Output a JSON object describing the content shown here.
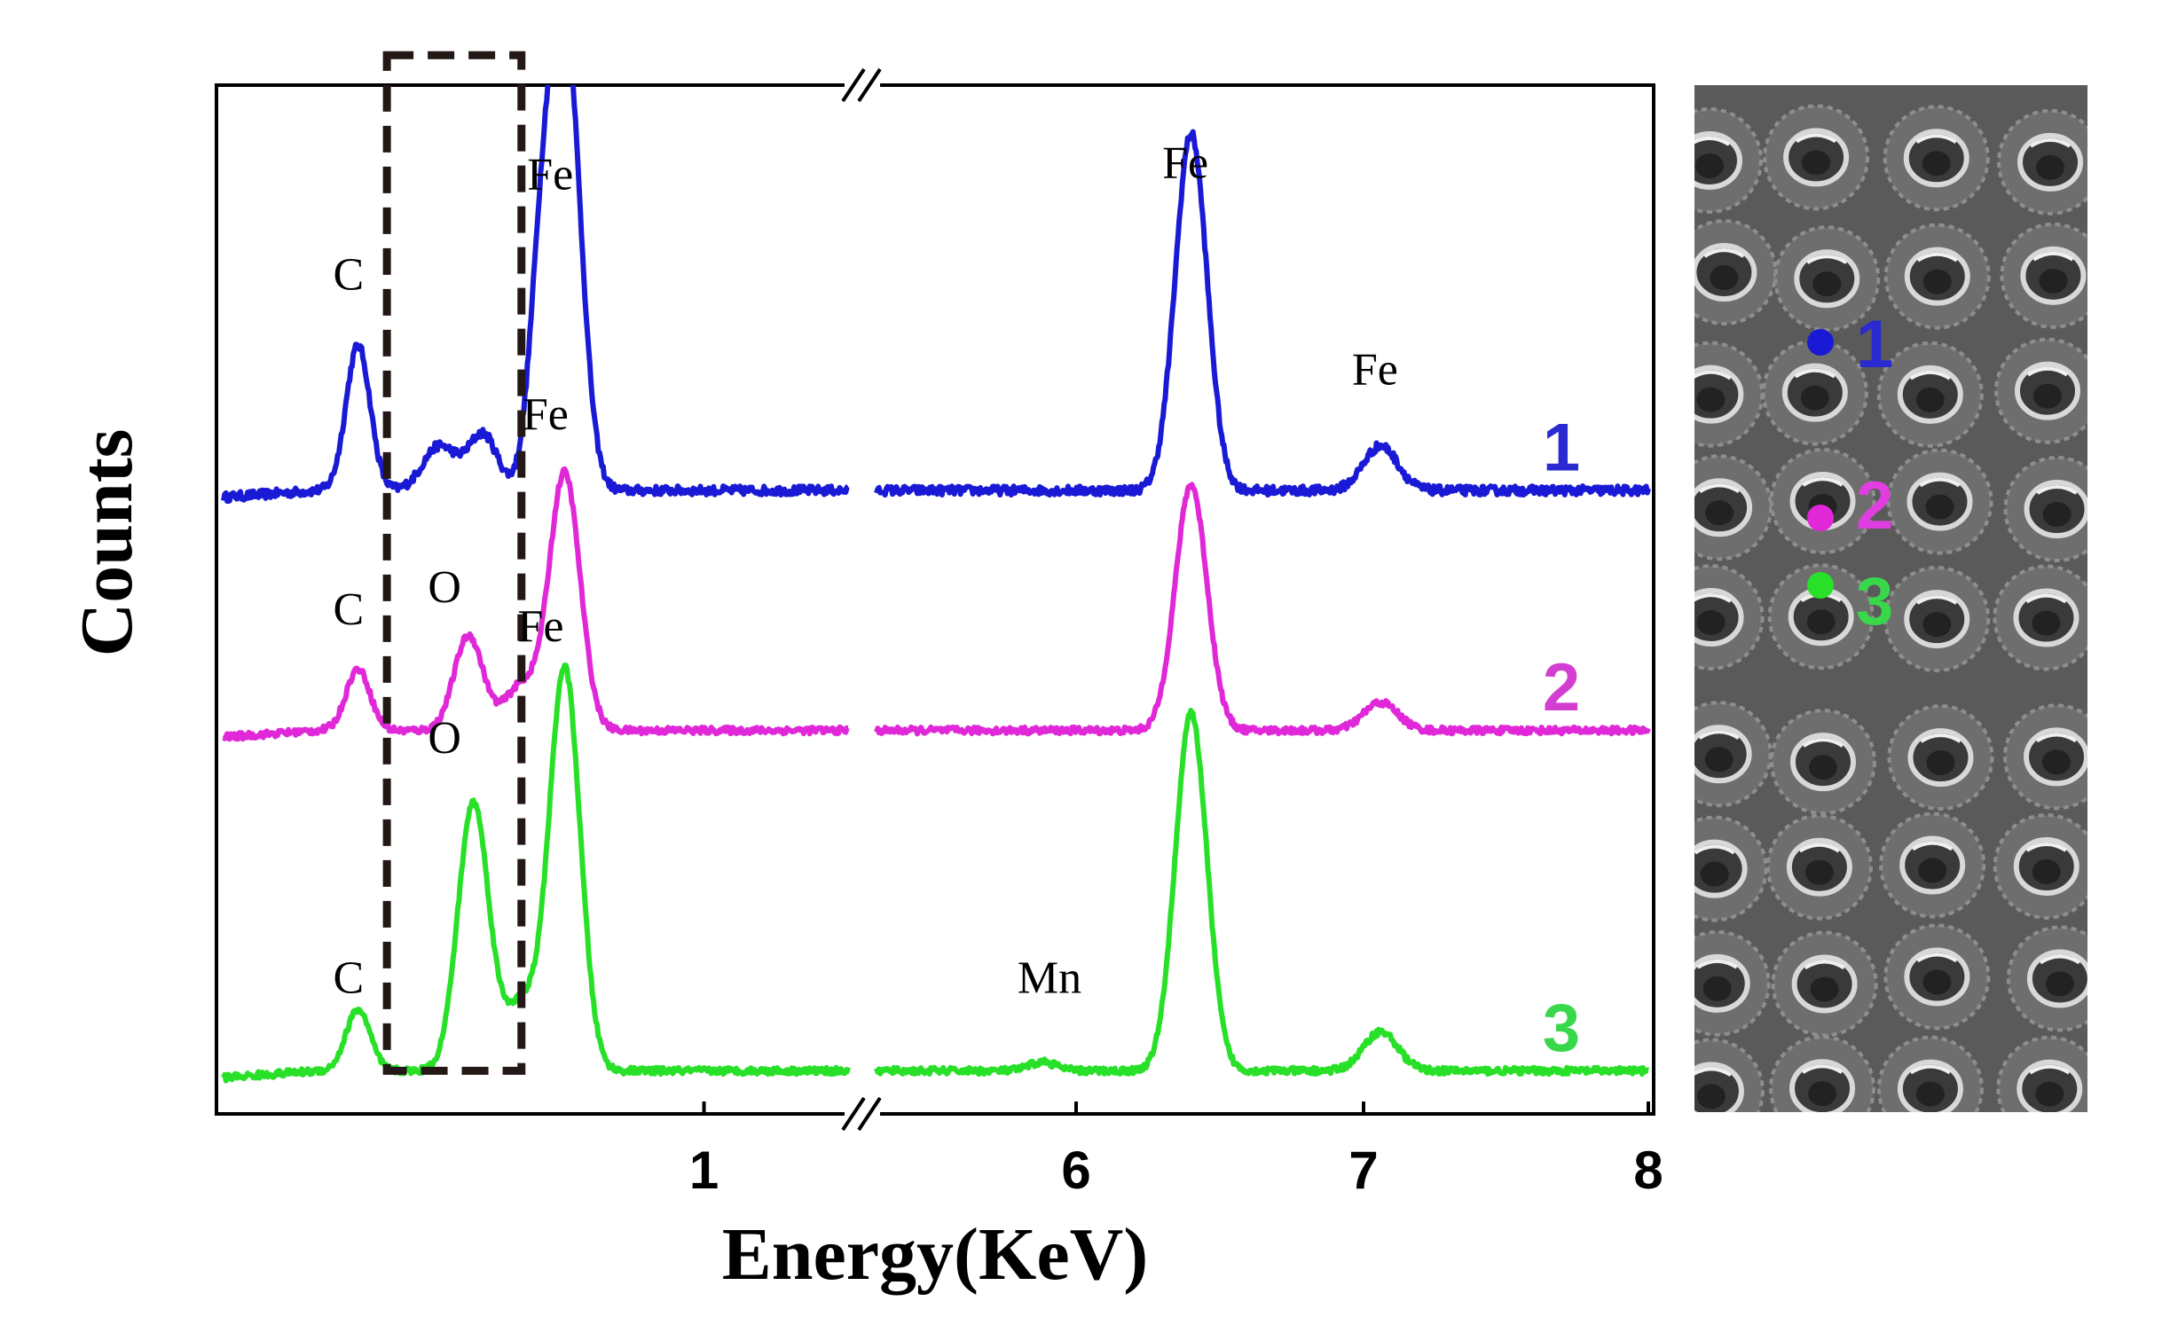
{
  "chart_data": {
    "type": "line",
    "title": "",
    "xlabel": "Energy(KeV)",
    "ylabel": "Counts",
    "x_axis_break": true,
    "xlim_segments": [
      [
        0,
        1.3
      ],
      [
        5.4,
        8
      ]
    ],
    "xticks": [
      {
        "value": 1,
        "label": "1"
      },
      {
        "value": 6,
        "label": "6"
      },
      {
        "value": 7,
        "label": "7"
      },
      {
        "value": 8,
        "label": "8"
      }
    ],
    "ylim": [
      -10,
      880
    ],
    "grid": false,
    "series": [
      {
        "name": "1",
        "label": "1",
        "color": "#1a1ad6",
        "baseline": 520,
        "noise": 4,
        "peaks": [
          {
            "center": 0.28,
            "height": 130,
            "width": 0.025
          },
          {
            "center": 0.45,
            "height": 40,
            "width": 0.035
          },
          {
            "center": 0.54,
            "height": 50,
            "width": 0.03
          },
          {
            "center": 0.66,
            "height": 160,
            "width": 0.025
          },
          {
            "center": 0.71,
            "height": 420,
            "width": 0.032
          },
          {
            "center": 6.4,
            "height": 320,
            "width": 0.055
          },
          {
            "center": 7.06,
            "height": 40,
            "width": 0.06
          }
        ]
      },
      {
        "name": "2",
        "label": "2",
        "color": "#e028d8",
        "baseline": 305,
        "noise": 3,
        "peaks": [
          {
            "center": 0.28,
            "height": 55,
            "width": 0.025
          },
          {
            "center": 0.51,
            "height": 85,
            "width": 0.03
          },
          {
            "center": 0.62,
            "height": 40,
            "width": 0.035
          },
          {
            "center": 0.71,
            "height": 230,
            "width": 0.032
          },
          {
            "center": 6.4,
            "height": 220,
            "width": 0.055
          },
          {
            "center": 7.06,
            "height": 25,
            "width": 0.06
          }
        ]
      },
      {
        "name": "3",
        "label": "3",
        "color": "#28e028",
        "baseline": 0,
        "noise": 3,
        "peaks": [
          {
            "center": 0.28,
            "height": 55,
            "width": 0.025
          },
          {
            "center": 0.52,
            "height": 240,
            "width": 0.032
          },
          {
            "center": 0.62,
            "height": 60,
            "width": 0.035
          },
          {
            "center": 0.71,
            "height": 360,
            "width": 0.032
          },
          {
            "center": 5.9,
            "height": 8,
            "width": 0.04
          },
          {
            "center": 6.4,
            "height": 320,
            "width": 0.055
          },
          {
            "center": 7.06,
            "height": 35,
            "width": 0.06
          }
        ]
      }
    ],
    "annotations": [
      {
        "text": "Fe",
        "x": 0.68,
        "y": 790
      },
      {
        "text": "C",
        "x": 0.26,
        "y": 700
      },
      {
        "text": "Fe",
        "x": 6.38,
        "y": 800
      },
      {
        "text": "Fe",
        "x": 7.04,
        "y": 615
      },
      {
        "text": "Fe",
        "x": 0.67,
        "y": 575
      },
      {
        "text": "O",
        "x": 0.46,
        "y": 420
      },
      {
        "text": "C",
        "x": 0.26,
        "y": 400
      },
      {
        "text": "Fe",
        "x": 0.66,
        "y": 385
      },
      {
        "text": "O",
        "x": 0.46,
        "y": 285
      },
      {
        "text": "C",
        "x": 0.26,
        "y": 70
      },
      {
        "text": "Mn",
        "x": 5.92,
        "y": 70
      }
    ],
    "highlight_box": {
      "x": [
        0.34,
        0.62
      ],
      "y": [
        0,
        910
      ],
      "style": "dashed"
    }
  },
  "sem_panel": {
    "points": [
      {
        "label": "1",
        "color": "#1a1ad6"
      },
      {
        "label": "2",
        "color": "#e028d8"
      },
      {
        "label": "3",
        "color": "#28e028"
      }
    ]
  }
}
